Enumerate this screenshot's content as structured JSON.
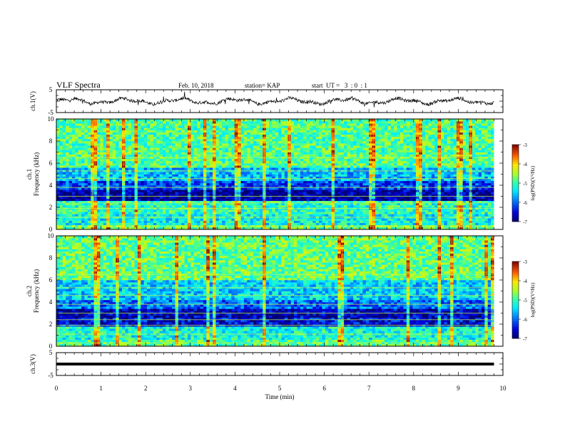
{
  "header": {
    "title": "VLF Spectra",
    "date": "Feb. 10, 2018",
    "station": "station= KAP",
    "start": "start  UT =   3  : 0  : 1"
  },
  "chart_data": [
    {
      "type": "line",
      "ylabel": "ch.1(V)",
      "ylim": [
        -5,
        5
      ],
      "yticks": [
        "5",
        "-5"
      ],
      "xlim": [
        0,
        10
      ],
      "note": "dense broadband waveform oscillating roughly between -1.5 and 1.5 V",
      "series": [
        {
          "approx_range": [
            -1.5,
            1.5
          ]
        }
      ]
    },
    {
      "type": "heatmap",
      "ylabel": "ch.1\nFrequency (kHz)",
      "ylim": [
        0,
        10
      ],
      "yticks": [
        "0",
        "2",
        "4",
        "6",
        "8",
        "10"
      ],
      "xlim": [
        0,
        10
      ],
      "colorbar": {
        "label": "log(PSD)(V²/Hz)",
        "range": [
          -7,
          -3
        ],
        "ticks": [
          "-3",
          "-4",
          "-5",
          "-6",
          "-7"
        ]
      },
      "bands": [
        {
          "from": 0,
          "to": 0.5,
          "level": -4.8
        },
        {
          "from": 0.5,
          "to": 1.5,
          "level": -5.3
        },
        {
          "from": 1.5,
          "to": 2.6,
          "level": -5.1
        },
        {
          "from": 2.6,
          "to": 3.6,
          "level": -6.8
        },
        {
          "from": 3.6,
          "to": 4.4,
          "level": -6.2
        },
        {
          "from": 4.4,
          "to": 5.6,
          "level": -5.6
        },
        {
          "from": 5.6,
          "to": 10,
          "level": -4.9
        }
      ]
    },
    {
      "type": "heatmap",
      "ylabel": "ch.2\nFrequency (kHz)",
      "ylim": [
        0,
        10
      ],
      "yticks": [
        "0",
        "2",
        "4",
        "6",
        "8",
        "10"
      ],
      "xlim": [
        0,
        10
      ],
      "colorbar": {
        "label": "log(PSD)(V²/Hz)",
        "range": [
          -7,
          -3
        ],
        "ticks": [
          "-3",
          "-4",
          "-5",
          "-6",
          "-7"
        ]
      },
      "bands": [
        {
          "from": 0,
          "to": 0.6,
          "level": -4.9
        },
        {
          "from": 0.6,
          "to": 1.8,
          "level": -5.2
        },
        {
          "from": 1.8,
          "to": 2.6,
          "level": -6.5
        },
        {
          "from": 2.6,
          "to": 3.4,
          "level": -6.7
        },
        {
          "from": 3.4,
          "to": 4.2,
          "level": -6.0
        },
        {
          "from": 4.2,
          "to": 6.0,
          "level": -5.5
        },
        {
          "from": 6.0,
          "to": 10,
          "level": -4.8
        }
      ]
    },
    {
      "type": "line",
      "ylabel": "ch.3(V)",
      "xlabel": "Time (min)",
      "ylim": [
        -5,
        5
      ],
      "yticks": [
        "5",
        "-5"
      ],
      "xlim": [
        0,
        10
      ],
      "xticks": [
        "0",
        "1",
        "2",
        "3",
        "4",
        "5",
        "6",
        "7",
        "8",
        "9",
        "10"
      ],
      "series": [
        {
          "x": [
            0,
            9.8
          ],
          "y": [
            0,
            0
          ]
        }
      ]
    }
  ]
}
